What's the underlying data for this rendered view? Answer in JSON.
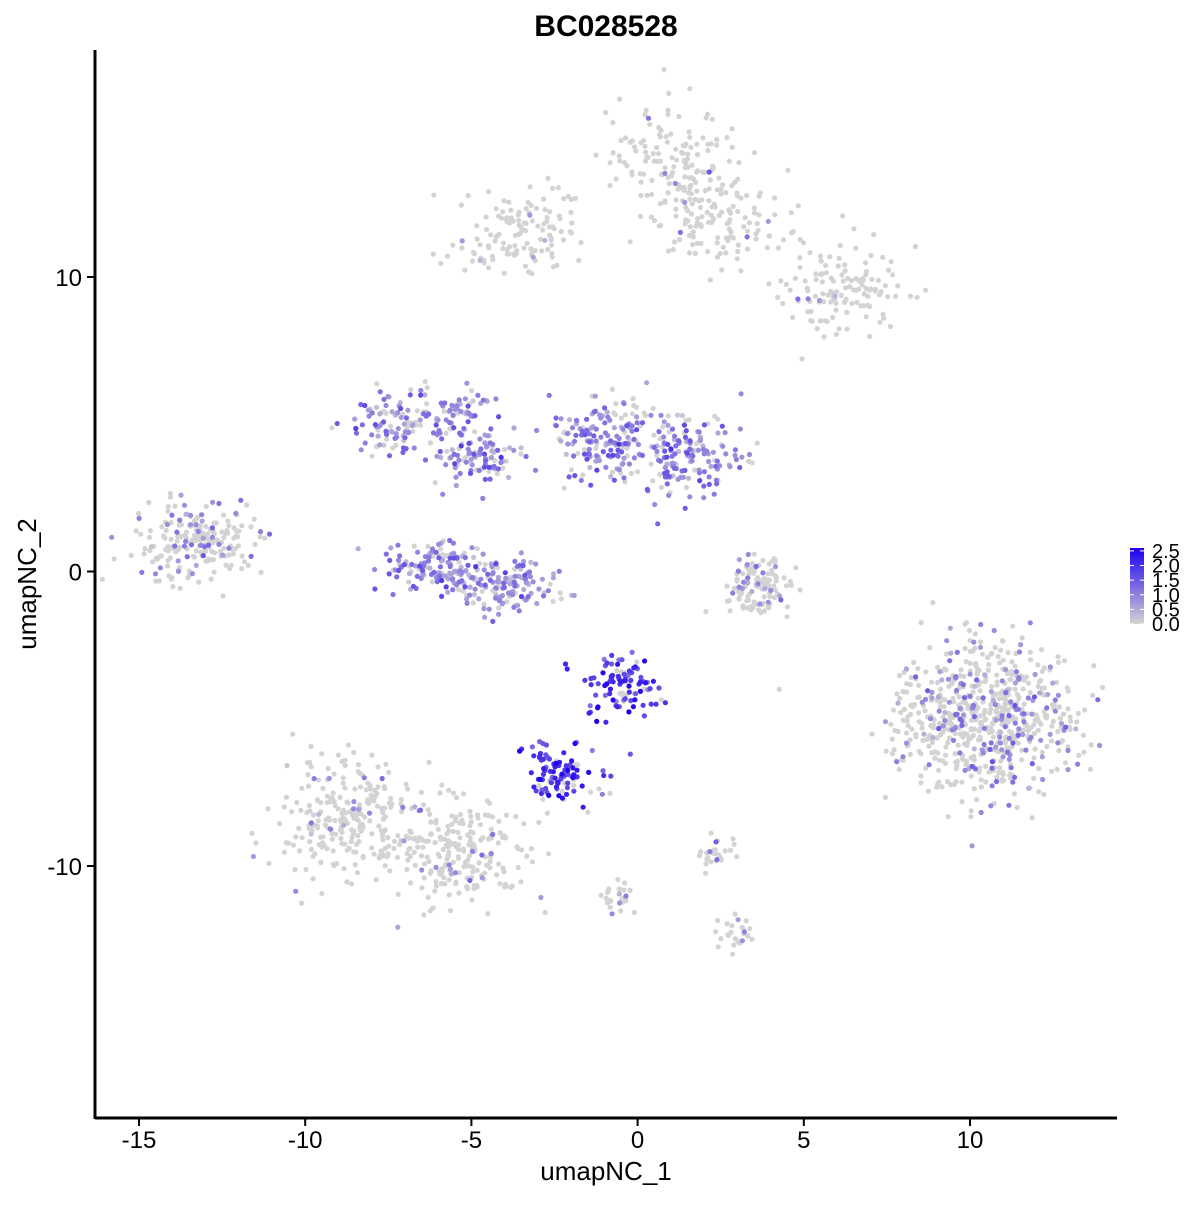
{
  "chart_data": {
    "type": "scatter",
    "title": "BC028528",
    "xlabel": "umapNC_1",
    "ylabel": "umapNC_2",
    "xlim": [
      -16.5,
      14.5
    ],
    "ylim": [
      -18.5,
      17.5
    ],
    "x_ticks": [
      -15,
      -10,
      -5,
      0,
      5,
      10
    ],
    "x_tick_labels": [
      "-15",
      "-10",
      "-5",
      "0",
      "5",
      "10"
    ],
    "y_ticks": [
      -10,
      0,
      10
    ],
    "y_tick_labels": [
      "-10",
      "0",
      "10"
    ],
    "legend": {
      "placement": "right",
      "title": "",
      "min": 0.0,
      "max": 2.6,
      "ticks": [
        "0.0",
        "0.5",
        "1.0",
        "1.5",
        "2.0",
        "2.5"
      ],
      "low_color": "#d3d3d3",
      "high_color": "#1f00f0"
    },
    "colors": {
      "low": "#d3d3d3",
      "high": "#1f00f0"
    },
    "clusters": [
      {
        "name": "top-right-gray",
        "x": [
          -3.5,
          1.0,
          2.5,
          6.0
        ],
        "y": [
          11.5,
          14.0,
          12.0,
          9.5
        ],
        "expr": 0.05
      },
      {
        "name": "left-gray",
        "x": [
          -13.2
        ],
        "y": [
          1.0
        ],
        "expr": 0.3
      },
      {
        "name": "upper-left-purple",
        "x": [
          -7.5,
          -5.5,
          -4.7
        ],
        "y": [
          5.0,
          5.2,
          3.8
        ],
        "expr": 0.9
      },
      {
        "name": "crescent",
        "x": [
          -6.0,
          -4.0
        ],
        "y": [
          0.2,
          -0.5
        ],
        "expr": 0.8
      },
      {
        "name": "upper-center-purple",
        "x": [
          -1.0,
          1.5
        ],
        "y": [
          4.5,
          4.0
        ],
        "expr": 0.9
      },
      {
        "name": "right-mid-small",
        "x": [
          3.6
        ],
        "y": [
          -0.5
        ],
        "expr": 0.3
      },
      {
        "name": "bottom-center-blue",
        "x": [
          -0.5,
          -2.3
        ],
        "y": [
          -3.8,
          -6.9
        ],
        "expr": 1.9
      },
      {
        "name": "bottom-left-gray",
        "x": [
          -8.8,
          -5.5
        ],
        "y": [
          -8.5,
          -9.5
        ],
        "expr": 0.1
      },
      {
        "name": "right-large",
        "x": [
          10.5
        ],
        "y": [
          -5.0
        ],
        "expr": 0.35
      },
      {
        "name": "small-bottom",
        "x": [
          2.4,
          -0.5,
          3.0
        ],
        "y": [
          -9.6,
          -11.0,
          -12.3
        ],
        "expr": 0.2
      }
    ]
  }
}
